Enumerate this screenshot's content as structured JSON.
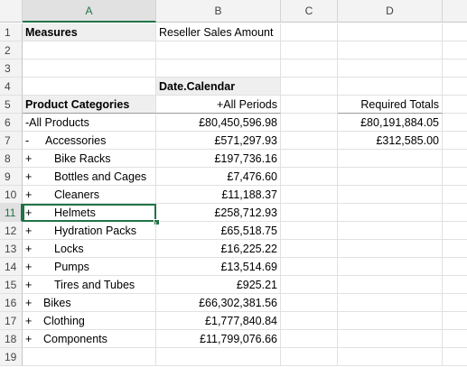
{
  "columns": [
    "A",
    "B",
    "C",
    "D"
  ],
  "rows": [
    {
      "n": "1",
      "a": "Measures",
      "b": "Reseller Sales Amount",
      "d": ""
    },
    {
      "n": "2",
      "a": "",
      "b": "",
      "d": ""
    },
    {
      "n": "3",
      "a": "",
      "b": "",
      "d": ""
    },
    {
      "n": "4",
      "a": "",
      "b": "Date.Calendar",
      "d": ""
    },
    {
      "n": "5",
      "a": "Product Categories",
      "b": "+All Periods",
      "d": "Required Totals"
    },
    {
      "n": "6",
      "a_pm": "-",
      "a": "All Products",
      "b": "£80,450,596.98",
      "d": "£80,191,884.05"
    },
    {
      "n": "7",
      "a_pm": "-",
      "a": "Accessories",
      "b": "£571,297.93",
      "d": "£312,585.00"
    },
    {
      "n": "8",
      "a_pm": "+",
      "a": "Bike Racks",
      "b": "£197,736.16",
      "d": ""
    },
    {
      "n": "9",
      "a_pm": "+",
      "a": "Bottles and Cages",
      "b": "£7,476.60",
      "d": ""
    },
    {
      "n": "10",
      "a_pm": "+",
      "a": "Cleaners",
      "b": "£11,188.37",
      "d": ""
    },
    {
      "n": "11",
      "a_pm": "+",
      "a": "Helmets",
      "b": "£258,712.93",
      "d": ""
    },
    {
      "n": "12",
      "a_pm": "+",
      "a": "Hydration Packs",
      "b": "£65,518.75",
      "d": ""
    },
    {
      "n": "13",
      "a_pm": "+",
      "a": "Locks",
      "b": "£16,225.22",
      "d": ""
    },
    {
      "n": "14",
      "a_pm": "+",
      "a": "Pumps",
      "b": "£13,514.69",
      "d": ""
    },
    {
      "n": "15",
      "a_pm": "+",
      "a": "Tires and Tubes",
      "b": "£925.21",
      "d": ""
    },
    {
      "n": "16",
      "a_pm": "+",
      "a": "Bikes",
      "b": "£66,302,381.56",
      "d": ""
    },
    {
      "n": "17",
      "a_pm": "+",
      "a": "Clothing",
      "b": "£1,777,840.84",
      "d": ""
    },
    {
      "n": "18",
      "a_pm": "+",
      "a": "Components",
      "b": "£11,799,076.66",
      "d": ""
    },
    {
      "n": "19",
      "a": "",
      "b": "",
      "d": ""
    }
  ]
}
